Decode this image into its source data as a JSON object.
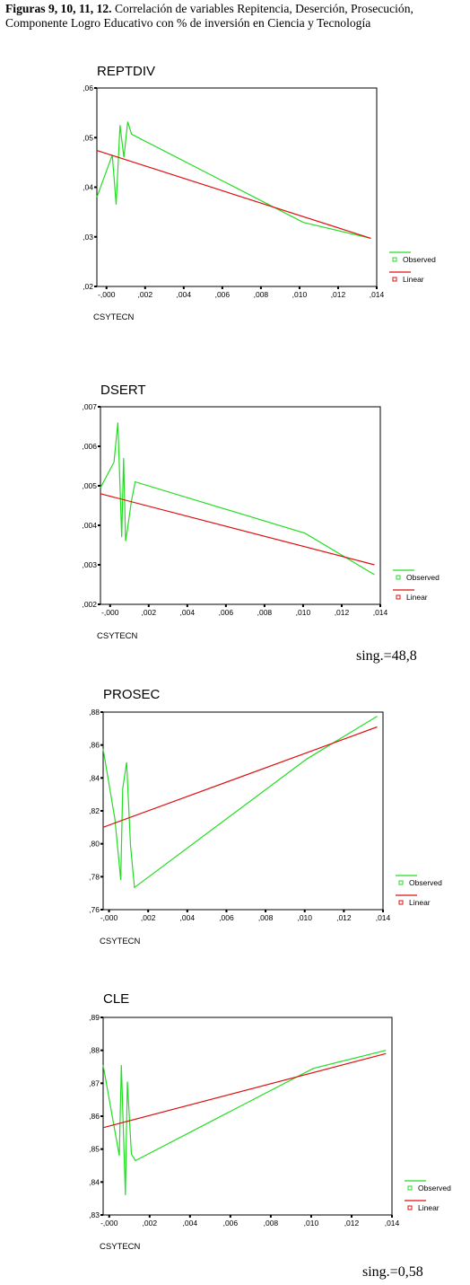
{
  "caption": {
    "lead": "Figuras 9, 10, 11, 12.",
    "text": " Correlación de variables Repitencia, Deserción, Prosecución, Componente Logro Educativo con % de inversión en Ciencia y Tecnología"
  },
  "significance": [
    "sing.=48,8",
    "sing.=0,58"
  ],
  "colors": {
    "observed": "#22dd22",
    "linear": "#dd1111",
    "axes": "#000000"
  },
  "chart_data": [
    {
      "type": "line",
      "title": "REPTDIV",
      "xlabel": "CSYTECN",
      "ylabel": "",
      "xlim": [
        -0.0005,
        0.014
      ],
      "ylim": [
        0.02,
        0.06
      ],
      "xticks": [
        "-,000",
        ",002",
        ",004",
        ",006",
        ",008",
        ",010",
        ",012",
        ",014"
      ],
      "yticks": [
        ",02",
        ",03",
        ",04",
        ",05",
        ",06"
      ],
      "legend": [
        "Observed",
        "Linear"
      ],
      "legend_position": "right",
      "series": [
        {
          "name": "Observed",
          "x": [
            -0.0005,
            0.0003,
            0.0005,
            0.0007,
            0.0009,
            0.0011,
            0.0013,
            0.0102,
            0.0137
          ],
          "y": [
            0.038,
            0.0465,
            0.0365,
            0.0525,
            0.046,
            0.0532,
            0.0507,
            0.0329,
            0.0297
          ]
        },
        {
          "name": "Linear",
          "x": [
            -0.0005,
            0.0137
          ],
          "y": [
            0.0474,
            0.0297
          ]
        }
      ]
    },
    {
      "type": "line",
      "title": "DSERT",
      "xlabel": "CSYTECN",
      "ylabel": "",
      "xlim": [
        -0.0005,
        0.014
      ],
      "ylim": [
        0.002,
        0.007
      ],
      "xticks": [
        "-,000",
        ",002",
        ",004",
        ",006",
        ",008",
        ",010",
        ",012",
        ",014"
      ],
      "yticks": [
        ",002",
        ",003",
        ",004",
        ",005",
        ",006",
        ",007"
      ],
      "legend": [
        "Observed",
        "Linear"
      ],
      "legend_position": "right",
      "series": [
        {
          "name": "Observed",
          "x": [
            -0.0005,
            0.0002,
            0.0004,
            0.0006,
            0.0007,
            0.0008,
            0.0009,
            0.0011,
            0.0013,
            0.0101,
            0.0137
          ],
          "y": [
            0.00495,
            0.0056,
            0.0066,
            0.0037,
            0.0057,
            0.0036,
            0.0039,
            0.0046,
            0.0051,
            0.0038,
            0.00275
          ]
        },
        {
          "name": "Linear",
          "x": [
            -0.0005,
            0.0137
          ],
          "y": [
            0.0048,
            0.003
          ]
        }
      ]
    },
    {
      "type": "line",
      "title": "PROSEC",
      "xlabel": "CSYTECN",
      "ylabel": "",
      "xlim": [
        -0.0003,
        0.014
      ],
      "ylim": [
        0.76,
        0.88
      ],
      "xticks": [
        "-,000",
        ",002",
        ",004",
        ",006",
        ",008",
        ",010",
        ",012",
        ",014"
      ],
      "yticks": [
        ",76",
        ",78",
        ",80",
        ",82",
        ",84",
        ",86",
        ",88"
      ],
      "legend": [
        "Observed",
        "Linear"
      ],
      "legend_position": "right",
      "series": [
        {
          "name": "Observed",
          "x": [
            -0.0003,
            0.0003,
            0.0006,
            0.0007,
            0.0009,
            0.0011,
            0.0013,
            0.0101,
            0.0137
          ],
          "y": [
            0.8575,
            0.815,
            0.778,
            0.8335,
            0.8495,
            0.799,
            0.7735,
            0.8515,
            0.8775
          ]
        },
        {
          "name": "Linear",
          "x": [
            -0.0003,
            0.0137
          ],
          "y": [
            0.81,
            0.871
          ]
        }
      ]
    },
    {
      "type": "line",
      "title": "CLE",
      "xlabel": "CSYTECN",
      "ylabel": "",
      "xlim": [
        -0.0003,
        0.014
      ],
      "ylim": [
        0.83,
        0.89
      ],
      "xticks": [
        "-,000",
        ",002",
        ",004",
        ",006",
        ",008",
        ",010",
        ",012",
        ",014"
      ],
      "yticks": [
        ",83",
        ",84",
        ",85",
        ",86",
        ",87",
        ",88",
        ",89"
      ],
      "legend": [
        "Observed",
        "Linear"
      ],
      "legend_position": "right",
      "series": [
        {
          "name": "Observed",
          "x": [
            -0.0003,
            0.0005,
            0.0006,
            0.0008,
            0.0009,
            0.0011,
            0.0013,
            0.0101,
            0.0137
          ],
          "y": [
            0.8755,
            0.848,
            0.8755,
            0.836,
            0.8705,
            0.8485,
            0.8465,
            0.8745,
            0.88
          ]
        },
        {
          "name": "Linear",
          "x": [
            -0.0003,
            0.0137
          ],
          "y": [
            0.8565,
            0.879
          ]
        }
      ]
    }
  ]
}
